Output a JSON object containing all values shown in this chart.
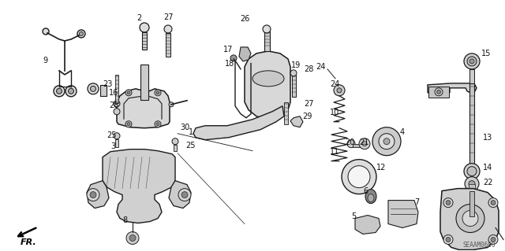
{
  "bg_color": "#ffffff",
  "line_color": "#1a1a1a",
  "diagram_code": "SEAAM0600",
  "label_fontsize": 7.0,
  "label_color": "#111111",
  "fig_w": 6.4,
  "fig_h": 3.19,
  "dpi": 100
}
